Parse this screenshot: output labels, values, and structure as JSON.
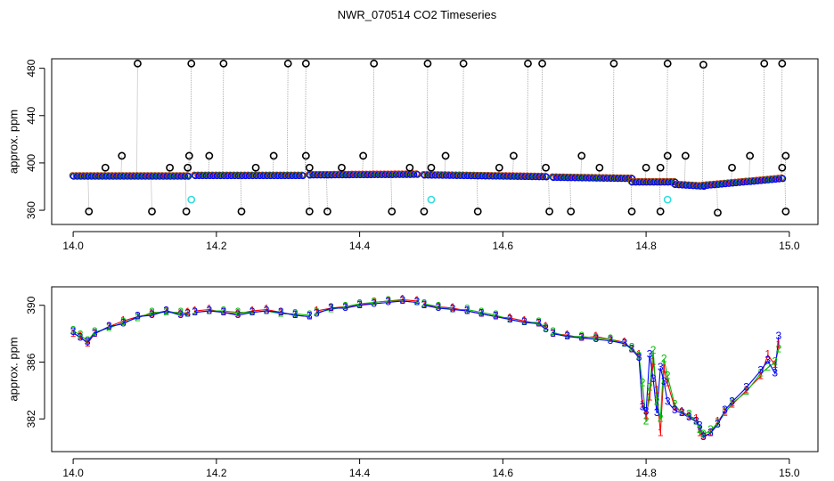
{
  "window": {
    "title": "NWR_070514  CO2 Timeseries"
  },
  "chart_data": [
    {
      "type": "scatter",
      "title": "",
      "xlabel": "",
      "ylabel": "approx. ppm",
      "xlim": [
        13.97,
        15.04
      ],
      "ylim": [
        348,
        488
      ],
      "xticks": [
        14.0,
        14.2,
        14.4,
        14.6,
        14.8,
        15.0
      ],
      "xtick_labels": [
        "14.0",
        "14.2",
        "14.4",
        "14.6",
        "14.8",
        "15.0"
      ],
      "yticks": [
        360,
        400,
        440,
        480
      ],
      "ytick_labels": [
        "360",
        "400",
        "440",
        "480"
      ],
      "grid": false,
      "colors": {
        "series1": "#ff0000",
        "series2": "#00bb00",
        "series3": "#0000ff",
        "spikes": "#000000",
        "cyan": "#33dddd",
        "spike_line": "#999999"
      },
      "baseline_segments": [
        {
          "x": [
            14.0,
            14.16
          ],
          "y": [
            389,
            389
          ]
        },
        {
          "x": [
            14.17,
            14.32
          ],
          "y": [
            389.5,
            389.5
          ]
        },
        {
          "x": [
            14.33,
            14.48
          ],
          "y": [
            390,
            390.5
          ]
        },
        {
          "x": [
            14.49,
            14.66
          ],
          "y": [
            390,
            388.5
          ]
        },
        {
          "x": [
            14.67,
            14.78
          ],
          "y": [
            388,
            387
          ]
        },
        {
          "x": [
            14.78,
            14.84
          ],
          "y": [
            384,
            384
          ]
        },
        {
          "x": [
            14.84,
            14.88
          ],
          "y": [
            382,
            380.5
          ]
        },
        {
          "x": [
            14.88,
            14.99
          ],
          "y": [
            381,
            387
          ]
        }
      ],
      "spikes_high": [
        {
          "x": 14.09,
          "y": 484
        },
        {
          "x": 14.165,
          "y": 484
        },
        {
          "x": 14.21,
          "y": 484
        },
        {
          "x": 14.3,
          "y": 484
        },
        {
          "x": 14.325,
          "y": 484
        },
        {
          "x": 14.42,
          "y": 484
        },
        {
          "x": 14.495,
          "y": 484
        },
        {
          "x": 14.545,
          "y": 484
        },
        {
          "x": 14.635,
          "y": 484
        },
        {
          "x": 14.655,
          "y": 484
        },
        {
          "x": 14.755,
          "y": 484
        },
        {
          "x": 14.83,
          "y": 484
        },
        {
          "x": 14.88,
          "y": 483
        },
        {
          "x": 14.965,
          "y": 484
        },
        {
          "x": 14.99,
          "y": 484
        }
      ],
      "spikes_mid": [
        {
          "x": 14.045,
          "y": 396
        },
        {
          "x": 14.068,
          "y": 406
        },
        {
          "x": 14.135,
          "y": 396
        },
        {
          "x": 14.16,
          "y": 396
        },
        {
          "x": 14.162,
          "y": 406
        },
        {
          "x": 14.19,
          "y": 406
        },
        {
          "x": 14.255,
          "y": 396
        },
        {
          "x": 14.28,
          "y": 406
        },
        {
          "x": 14.33,
          "y": 396
        },
        {
          "x": 14.325,
          "y": 406
        },
        {
          "x": 14.375,
          "y": 396
        },
        {
          "x": 14.405,
          "y": 406
        },
        {
          "x": 14.47,
          "y": 396
        },
        {
          "x": 14.5,
          "y": 396
        },
        {
          "x": 14.52,
          "y": 406
        },
        {
          "x": 14.595,
          "y": 396
        },
        {
          "x": 14.615,
          "y": 406
        },
        {
          "x": 14.66,
          "y": 396
        },
        {
          "x": 14.71,
          "y": 406
        },
        {
          "x": 14.735,
          "y": 396
        },
        {
          "x": 14.8,
          "y": 396
        },
        {
          "x": 14.82,
          "y": 396
        },
        {
          "x": 14.83,
          "y": 406
        },
        {
          "x": 14.855,
          "y": 406
        },
        {
          "x": 14.92,
          "y": 396
        },
        {
          "x": 14.945,
          "y": 406
        },
        {
          "x": 14.99,
          "y": 396
        },
        {
          "x": 14.995,
          "y": 406
        }
      ],
      "spikes_low": [
        {
          "x": 14.022,
          "y": 359
        },
        {
          "x": 14.11,
          "y": 359
        },
        {
          "x": 14.158,
          "y": 359
        },
        {
          "x": 14.235,
          "y": 359
        },
        {
          "x": 14.33,
          "y": 359
        },
        {
          "x": 14.355,
          "y": 359
        },
        {
          "x": 14.445,
          "y": 359
        },
        {
          "x": 14.49,
          "y": 359
        },
        {
          "x": 14.565,
          "y": 359
        },
        {
          "x": 14.665,
          "y": 359
        },
        {
          "x": 14.695,
          "y": 359
        },
        {
          "x": 14.78,
          "y": 359
        },
        {
          "x": 14.82,
          "y": 359
        },
        {
          "x": 14.9,
          "y": 358
        },
        {
          "x": 14.995,
          "y": 359
        }
      ],
      "cyan_points": [
        {
          "x": 14.165,
          "y": 369
        },
        {
          "x": 14.5,
          "y": 369
        },
        {
          "x": 14.83,
          "y": 369
        }
      ]
    },
    {
      "type": "line",
      "title": "",
      "xlabel": "",
      "ylabel": "approx. ppm",
      "xlim": [
        13.97,
        15.04
      ],
      "ylim": [
        379.7,
        391.3
      ],
      "xticks": [
        14.0,
        14.2,
        14.4,
        14.6,
        14.8,
        15.0
      ],
      "xtick_labels": [
        "14.0",
        "14.2",
        "14.4",
        "14.6",
        "14.8",
        "15.0"
      ],
      "yticks": [
        382,
        386,
        390
      ],
      "ytick_labels": [
        "382",
        "386",
        "390"
      ],
      "grid": false,
      "gaps_after_x": [
        14.16,
        14.33,
        14.48,
        14.66
      ],
      "series": [
        {
          "name": "1",
          "color": "#ff0000",
          "x": [
            14.0,
            14.01,
            14.02,
            14.03,
            14.05,
            14.07,
            14.09,
            14.11,
            14.13,
            14.15,
            14.16,
            14.17,
            14.19,
            14.21,
            14.23,
            14.25,
            14.27,
            14.29,
            14.31,
            14.33,
            14.34,
            14.36,
            14.38,
            14.4,
            14.42,
            14.44,
            14.46,
            14.48,
            14.49,
            14.51,
            14.53,
            14.55,
            14.57,
            14.59,
            14.61,
            14.63,
            14.65,
            14.66,
            14.67,
            14.69,
            14.71,
            14.73,
            14.75,
            14.77,
            14.78,
            14.79,
            14.795,
            14.8,
            14.805,
            14.81,
            14.815,
            14.82,
            14.825,
            14.83,
            14.84,
            14.85,
            14.86,
            14.87,
            14.875,
            14.88,
            14.89,
            14.9,
            14.91,
            14.92,
            14.94,
            14.96,
            14.97,
            14.98,
            14.985
          ],
          "values": [
            388.0,
            387.8,
            387.3,
            388.0,
            388.5,
            388.9,
            389.2,
            389.4,
            389.6,
            389.4,
            389.5,
            389.6,
            389.7,
            389.5,
            389.4,
            389.6,
            389.7,
            389.5,
            389.3,
            389.2,
            389.6,
            389.8,
            389.9,
            390.0,
            390.2,
            390.3,
            390.4,
            390.3,
            390.0,
            389.9,
            389.8,
            389.6,
            389.4,
            389.2,
            389.1,
            388.9,
            388.7,
            388.5,
            388.0,
            387.9,
            387.7,
            387.8,
            387.6,
            387.4,
            386.9,
            386.5,
            383.0,
            382.2,
            383.5,
            386.0,
            384.0,
            381.0,
            385.5,
            384.5,
            382.8,
            382.5,
            382.2,
            382.0,
            381.0,
            380.8,
            381.0,
            381.8,
            382.5,
            383.0,
            384.0,
            385.0,
            386.5,
            385.8,
            387.2
          ]
        },
        {
          "name": "2",
          "color": "#00bb00",
          "x": [
            14.0,
            14.01,
            14.02,
            14.03,
            14.05,
            14.07,
            14.09,
            14.11,
            14.13,
            14.15,
            14.16,
            14.17,
            14.19,
            14.21,
            14.23,
            14.25,
            14.27,
            14.29,
            14.31,
            14.33,
            14.34,
            14.36,
            14.38,
            14.4,
            14.42,
            14.44,
            14.46,
            14.48,
            14.49,
            14.51,
            14.53,
            14.55,
            14.57,
            14.59,
            14.61,
            14.63,
            14.65,
            14.66,
            14.67,
            14.69,
            14.71,
            14.73,
            14.75,
            14.77,
            14.78,
            14.79,
            14.795,
            14.8,
            14.805,
            14.81,
            14.815,
            14.82,
            14.825,
            14.83,
            14.84,
            14.85,
            14.86,
            14.87,
            14.875,
            14.88,
            14.89,
            14.9,
            14.91,
            14.92,
            14.94,
            14.96,
            14.97,
            14.98,
            14.985
          ],
          "values": [
            388.2,
            387.9,
            387.5,
            388.1,
            388.4,
            388.8,
            389.1,
            389.5,
            389.5,
            389.5,
            389.4,
            389.5,
            389.6,
            389.6,
            389.5,
            389.5,
            389.6,
            389.4,
            389.4,
            389.3,
            389.5,
            389.7,
            389.9,
            390.1,
            390.2,
            390.3,
            390.3,
            390.2,
            390.1,
            389.9,
            389.7,
            389.7,
            389.5,
            389.3,
            389.0,
            388.8,
            388.8,
            388.4,
            388.1,
            387.8,
            387.8,
            387.7,
            387.6,
            387.3,
            387.0,
            386.4,
            384.5,
            381.8,
            384.2,
            386.8,
            383.2,
            382.0,
            386.2,
            385.0,
            383.0,
            382.4,
            382.3,
            381.8,
            381.2,
            380.9,
            381.2,
            381.7,
            382.4,
            383.1,
            383.9,
            385.2,
            385.6,
            386.0,
            386.9
          ]
        },
        {
          "name": "3",
          "color": "#0000ff",
          "x": [
            14.0,
            14.01,
            14.02,
            14.03,
            14.05,
            14.07,
            14.09,
            14.11,
            14.13,
            14.15,
            14.16,
            14.17,
            14.19,
            14.21,
            14.23,
            14.25,
            14.27,
            14.29,
            14.31,
            14.33,
            14.34,
            14.36,
            14.38,
            14.4,
            14.42,
            14.44,
            14.46,
            14.48,
            14.49,
            14.51,
            14.53,
            14.55,
            14.57,
            14.59,
            14.61,
            14.63,
            14.65,
            14.66,
            14.67,
            14.69,
            14.71,
            14.73,
            14.75,
            14.77,
            14.78,
            14.79,
            14.795,
            14.8,
            14.805,
            14.81,
            14.815,
            14.82,
            14.825,
            14.83,
            14.84,
            14.85,
            14.86,
            14.87,
            14.875,
            14.88,
            14.89,
            14.9,
            14.91,
            14.92,
            14.94,
            14.96,
            14.97,
            14.98,
            14.985
          ],
          "values": [
            388.1,
            387.7,
            387.4,
            388.0,
            388.5,
            388.7,
            389.2,
            389.3,
            389.6,
            389.3,
            389.4,
            389.5,
            389.6,
            389.5,
            389.3,
            389.5,
            389.6,
            389.5,
            389.3,
            389.2,
            389.4,
            389.8,
            389.8,
            390.0,
            390.1,
            390.2,
            390.3,
            390.2,
            390.0,
            389.8,
            389.7,
            389.6,
            389.4,
            389.2,
            389.0,
            388.8,
            388.7,
            388.3,
            388.0,
            387.8,
            387.7,
            387.6,
            387.5,
            387.3,
            386.9,
            386.3,
            382.8,
            382.5,
            386.5,
            384.8,
            382.4,
            385.6,
            384.6,
            383.2,
            382.6,
            382.4,
            382.1,
            381.8,
            381.5,
            380.7,
            381.0,
            381.6,
            382.6,
            383.2,
            384.2,
            385.4,
            386.1,
            385.2,
            387.8
          ]
        }
      ]
    }
  ]
}
